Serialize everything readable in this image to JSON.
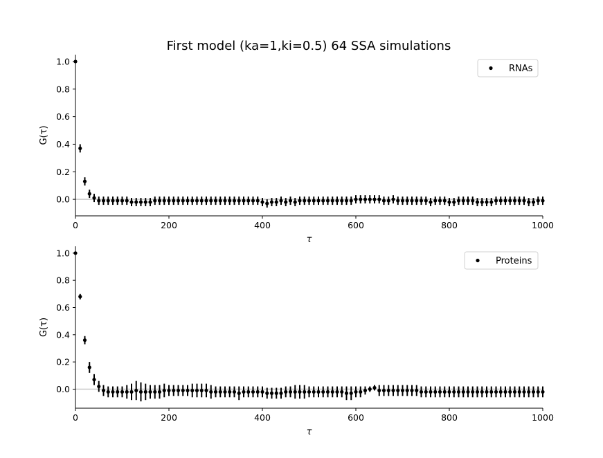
{
  "figure": {
    "title": "First model (ka=1,ki=0.5) 64 SSA simulations"
  },
  "chart_data": [
    {
      "type": "scatter",
      "xlabel": "τ",
      "ylabel": "G(τ)",
      "xlim": [
        0,
        1000
      ],
      "ylim": [
        -0.12,
        1.05
      ],
      "xticks": [
        0,
        200,
        400,
        600,
        800,
        1000
      ],
      "yticks": [
        0.0,
        0.2,
        0.4,
        0.6,
        0.8,
        1.0
      ],
      "reference_line": 0,
      "legend_position": "top-right",
      "series": [
        {
          "name": "RNAs",
          "color": "#000000",
          "x": [
            0,
            10,
            20,
            30,
            40,
            50,
            60,
            70,
            80,
            90,
            100,
            110,
            120,
            130,
            140,
            150,
            160,
            170,
            180,
            190,
            200,
            210,
            220,
            230,
            240,
            250,
            260,
            270,
            280,
            290,
            300,
            310,
            320,
            330,
            340,
            350,
            360,
            370,
            380,
            390,
            400,
            410,
            420,
            430,
            440,
            450,
            460,
            470,
            480,
            490,
            500,
            510,
            520,
            530,
            540,
            550,
            560,
            570,
            580,
            590,
            600,
            610,
            620,
            630,
            640,
            650,
            660,
            670,
            680,
            690,
            700,
            710,
            720,
            730,
            740,
            750,
            760,
            770,
            780,
            790,
            800,
            810,
            820,
            830,
            840,
            850,
            860,
            870,
            880,
            890,
            900,
            910,
            920,
            930,
            940,
            950,
            960,
            970,
            980,
            990,
            1000
          ],
          "y": [
            1.0,
            0.37,
            0.13,
            0.04,
            0.01,
            -0.01,
            -0.01,
            -0.01,
            -0.01,
            -0.01,
            -0.01,
            -0.01,
            -0.02,
            -0.02,
            -0.02,
            -0.02,
            -0.02,
            -0.01,
            -0.01,
            -0.01,
            -0.01,
            -0.01,
            -0.01,
            -0.01,
            -0.01,
            -0.01,
            -0.01,
            -0.01,
            -0.01,
            -0.01,
            -0.01,
            -0.01,
            -0.01,
            -0.01,
            -0.01,
            -0.01,
            -0.01,
            -0.01,
            -0.01,
            -0.01,
            -0.02,
            -0.03,
            -0.02,
            -0.02,
            -0.01,
            -0.02,
            -0.01,
            -0.02,
            -0.01,
            -0.01,
            -0.01,
            -0.01,
            -0.01,
            -0.01,
            -0.01,
            -0.01,
            -0.01,
            -0.01,
            -0.01,
            -0.01,
            0.0,
            0.0,
            0.0,
            0.0,
            0.0,
            0.0,
            -0.01,
            -0.01,
            0.0,
            -0.01,
            -0.01,
            -0.01,
            -0.01,
            -0.01,
            -0.01,
            -0.01,
            -0.02,
            -0.01,
            -0.01,
            -0.01,
            -0.02,
            -0.02,
            -0.01,
            -0.01,
            -0.01,
            -0.01,
            -0.02,
            -0.02,
            -0.02,
            -0.02,
            -0.01,
            -0.01,
            -0.01,
            -0.01,
            -0.01,
            -0.01,
            -0.01,
            -0.02,
            -0.02,
            -0.01,
            -0.01
          ],
          "error": [
            0.0,
            0.03,
            0.03,
            0.03,
            0.03,
            0.03,
            0.03,
            0.03,
            0.03,
            0.03,
            0.03,
            0.03,
            0.03,
            0.03,
            0.03,
            0.03,
            0.03,
            0.03,
            0.03,
            0.03,
            0.03,
            0.03,
            0.03,
            0.03,
            0.03,
            0.03,
            0.03,
            0.03,
            0.03,
            0.03,
            0.03,
            0.03,
            0.03,
            0.03,
            0.03,
            0.03,
            0.03,
            0.03,
            0.03,
            0.03,
            0.03,
            0.03,
            0.03,
            0.03,
            0.03,
            0.03,
            0.03,
            0.03,
            0.03,
            0.03,
            0.03,
            0.03,
            0.03,
            0.03,
            0.03,
            0.03,
            0.03,
            0.03,
            0.03,
            0.03,
            0.03,
            0.03,
            0.03,
            0.03,
            0.03,
            0.03,
            0.03,
            0.03,
            0.03,
            0.03,
            0.03,
            0.03,
            0.03,
            0.03,
            0.03,
            0.03,
            0.03,
            0.03,
            0.03,
            0.03,
            0.03,
            0.03,
            0.03,
            0.03,
            0.03,
            0.03,
            0.03,
            0.03,
            0.03,
            0.03,
            0.03,
            0.03,
            0.03,
            0.03,
            0.03,
            0.03,
            0.03,
            0.03,
            0.03,
            0.03,
            0.03
          ]
        }
      ]
    },
    {
      "type": "scatter",
      "xlabel": "τ",
      "ylabel": "G(τ)",
      "xlim": [
        0,
        1000
      ],
      "ylim": [
        -0.14,
        1.05
      ],
      "xticks": [
        0,
        200,
        400,
        600,
        800,
        1000
      ],
      "yticks": [
        0.0,
        0.2,
        0.4,
        0.6,
        0.8,
        1.0
      ],
      "reference_line": 0,
      "legend_position": "top-right",
      "series": [
        {
          "name": "Proteins",
          "color": "#000000",
          "x": [
            0,
            10,
            20,
            30,
            40,
            50,
            60,
            70,
            80,
            90,
            100,
            110,
            120,
            130,
            140,
            150,
            160,
            170,
            180,
            190,
            200,
            210,
            220,
            230,
            240,
            250,
            260,
            270,
            280,
            290,
            300,
            310,
            320,
            330,
            340,
            350,
            360,
            370,
            380,
            390,
            400,
            410,
            420,
            430,
            440,
            450,
            460,
            470,
            480,
            490,
            500,
            510,
            520,
            530,
            540,
            550,
            560,
            570,
            580,
            590,
            600,
            610,
            620,
            630,
            640,
            650,
            660,
            670,
            680,
            690,
            700,
            710,
            720,
            730,
            740,
            750,
            760,
            770,
            780,
            790,
            800,
            810,
            820,
            830,
            840,
            850,
            860,
            870,
            880,
            890,
            900,
            910,
            920,
            930,
            940,
            950,
            960,
            970,
            980,
            990,
            1000
          ],
          "y": [
            1.0,
            0.68,
            0.36,
            0.16,
            0.07,
            0.02,
            -0.01,
            -0.02,
            -0.02,
            -0.02,
            -0.02,
            -0.02,
            -0.02,
            -0.01,
            -0.02,
            -0.02,
            -0.02,
            -0.02,
            -0.02,
            -0.01,
            -0.01,
            -0.01,
            -0.01,
            -0.01,
            -0.01,
            -0.01,
            -0.01,
            -0.01,
            -0.01,
            -0.02,
            -0.02,
            -0.02,
            -0.02,
            -0.02,
            -0.02,
            -0.03,
            -0.02,
            -0.02,
            -0.02,
            -0.02,
            -0.02,
            -0.03,
            -0.03,
            -0.03,
            -0.03,
            -0.02,
            -0.02,
            -0.02,
            -0.02,
            -0.02,
            -0.02,
            -0.02,
            -0.02,
            -0.02,
            -0.02,
            -0.02,
            -0.02,
            -0.02,
            -0.03,
            -0.03,
            -0.02,
            -0.02,
            -0.01,
            0.0,
            0.01,
            -0.01,
            -0.01,
            -0.01,
            -0.01,
            -0.01,
            -0.01,
            -0.01,
            -0.01,
            -0.01,
            -0.02,
            -0.02,
            -0.02,
            -0.02,
            -0.02,
            -0.02,
            -0.02,
            -0.02,
            -0.02,
            -0.02,
            -0.02,
            -0.02,
            -0.02,
            -0.02,
            -0.02,
            -0.02,
            -0.02,
            -0.02,
            -0.02,
            -0.02,
            -0.02,
            -0.02,
            -0.02,
            -0.02,
            -0.02,
            -0.02,
            -0.02
          ],
          "error": [
            0.0,
            0.02,
            0.03,
            0.04,
            0.04,
            0.04,
            0.04,
            0.04,
            0.04,
            0.04,
            0.04,
            0.05,
            0.06,
            0.07,
            0.07,
            0.06,
            0.05,
            0.05,
            0.05,
            0.05,
            0.04,
            0.04,
            0.04,
            0.04,
            0.04,
            0.05,
            0.05,
            0.05,
            0.05,
            0.05,
            0.04,
            0.04,
            0.04,
            0.04,
            0.04,
            0.05,
            0.04,
            0.04,
            0.04,
            0.04,
            0.04,
            0.04,
            0.04,
            0.04,
            0.04,
            0.04,
            0.04,
            0.05,
            0.05,
            0.05,
            0.04,
            0.04,
            0.04,
            0.04,
            0.04,
            0.04,
            0.04,
            0.04,
            0.05,
            0.05,
            0.04,
            0.04,
            0.03,
            0.02,
            0.02,
            0.04,
            0.04,
            0.04,
            0.04,
            0.04,
            0.04,
            0.04,
            0.04,
            0.04,
            0.04,
            0.04,
            0.04,
            0.04,
            0.04,
            0.04,
            0.04,
            0.04,
            0.04,
            0.04,
            0.04,
            0.04,
            0.04,
            0.04,
            0.04,
            0.04,
            0.04,
            0.04,
            0.04,
            0.04,
            0.04,
            0.04,
            0.04,
            0.04,
            0.04,
            0.04,
            0.04
          ]
        }
      ]
    }
  ]
}
